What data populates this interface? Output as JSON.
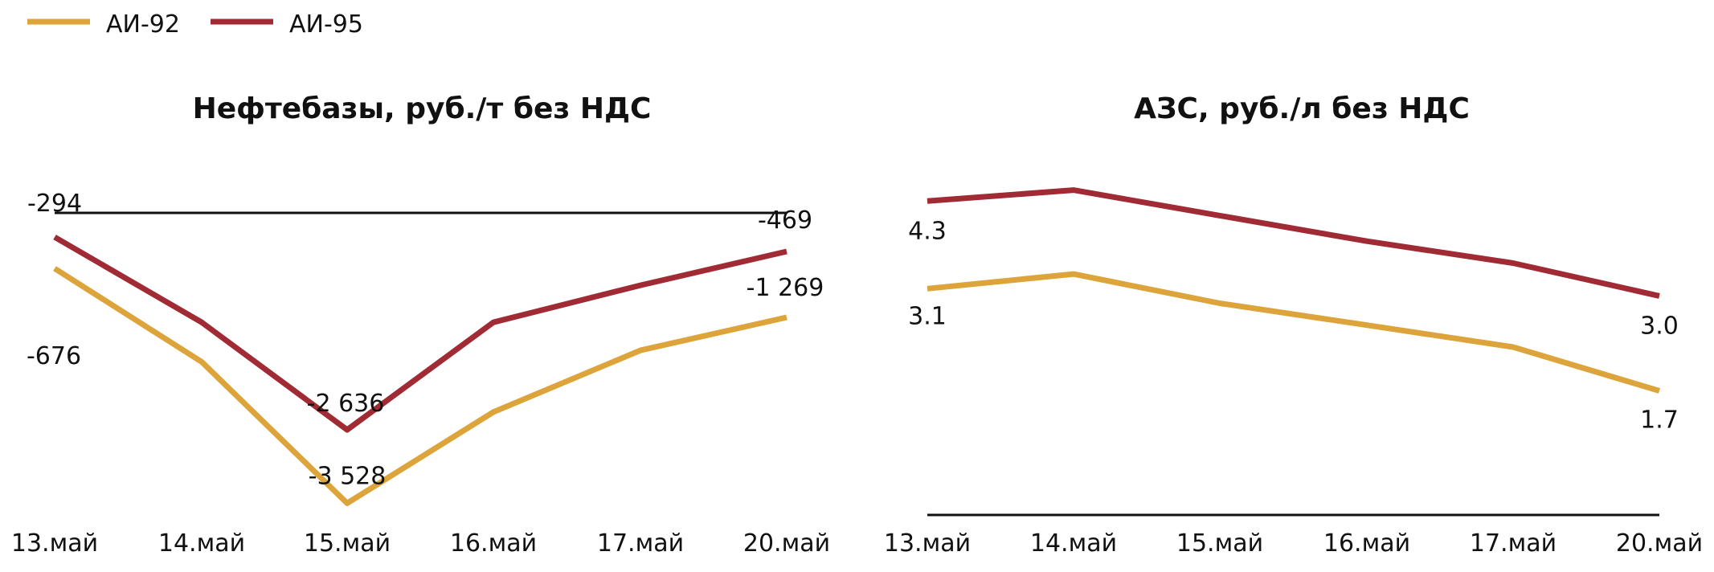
{
  "legend": [
    {
      "name": "АИ-92",
      "color": "#DCA43A"
    },
    {
      "name": "АИ-95",
      "color": "#A02B35"
    }
  ],
  "chart_data": [
    {
      "type": "line",
      "title": "Нефтебазы, руб./т без НДС",
      "categories": [
        "13.май",
        "14.май",
        "15.май",
        "16.май",
        "17.май",
        "20.май"
      ],
      "ylim": [
        -3700,
        0
      ],
      "grid": false,
      "legend_placement": "top-left",
      "series": [
        {
          "name": "АИ-92",
          "color": "#DCA43A",
          "values": [
            -676,
            -1810,
            -3528,
            -2420,
            -1670,
            -1269
          ]
        },
        {
          "name": "АИ-95",
          "color": "#A02B35",
          "values": [
            -294,
            -1330,
            -2636,
            -1330,
            -880,
            -469
          ]
        }
      ],
      "data_labels": [
        {
          "series": 0,
          "index": 0,
          "text": "-676"
        },
        {
          "series": 0,
          "index": 2,
          "text": "-3 528"
        },
        {
          "series": 0,
          "index": 5,
          "text": "-1 269"
        },
        {
          "series": 1,
          "index": 0,
          "text": "-294"
        },
        {
          "series": 1,
          "index": 2,
          "text": "-2 636"
        },
        {
          "series": 1,
          "index": 5,
          "text": "-469"
        }
      ]
    },
    {
      "type": "line",
      "title": "АЗС, руб./л без НДС",
      "categories": [
        "13.май",
        "14.май",
        "15.май",
        "16.май",
        "17.май",
        "20.май"
      ],
      "ylim": [
        0,
        4.6
      ],
      "grid": false,
      "legend_placement": "top-left",
      "series": [
        {
          "name": "АИ-92",
          "color": "#DCA43A",
          "values": [
            3.1,
            3.3,
            2.9,
            2.6,
            2.3,
            1.7
          ]
        },
        {
          "name": "АИ-95",
          "color": "#A02B35",
          "values": [
            4.3,
            4.45,
            4.1,
            3.75,
            3.45,
            3.0
          ]
        }
      ],
      "data_labels": [
        {
          "series": 0,
          "index": 0,
          "text": "3.1"
        },
        {
          "series": 0,
          "index": 5,
          "text": "1.7"
        },
        {
          "series": 1,
          "index": 0,
          "text": "4.3"
        },
        {
          "series": 1,
          "index": 5,
          "text": "3.0"
        }
      ]
    }
  ]
}
